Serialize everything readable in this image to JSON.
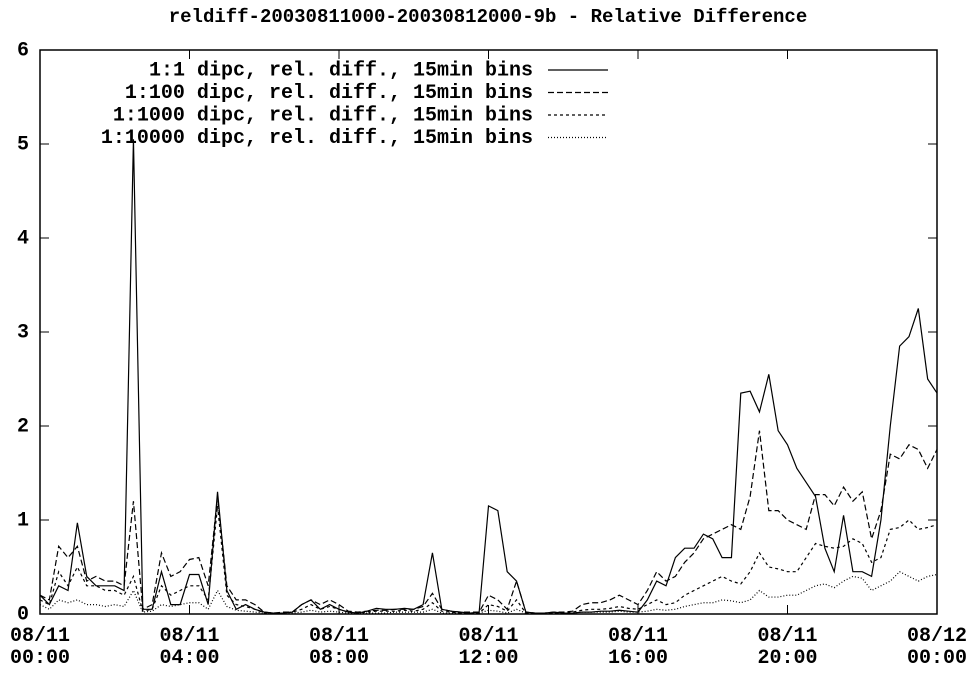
{
  "chart_data": {
    "type": "line",
    "title": "reldiff-20030811000-20030812000-9b - Relative Difference",
    "x": [
      "08/11 00:00",
      "08/11 00:15",
      "08/11 00:30",
      "08/11 00:45",
      "08/11 01:00",
      "08/11 01:15",
      "08/11 01:30",
      "08/11 01:45",
      "08/11 02:00",
      "08/11 02:15",
      "08/11 02:30",
      "08/11 02:45",
      "08/11 03:00",
      "08/11 03:15",
      "08/11 03:30",
      "08/11 03:45",
      "08/11 04:00",
      "08/11 04:15",
      "08/11 04:30",
      "08/11 04:45",
      "08/11 05:00",
      "08/11 05:15",
      "08/11 05:30",
      "08/11 05:45",
      "08/11 06:00",
      "08/11 06:15",
      "08/11 06:30",
      "08/11 06:45",
      "08/11 07:00",
      "08/11 07:15",
      "08/11 07:30",
      "08/11 07:45",
      "08/11 08:00",
      "08/11 08:15",
      "08/11 08:30",
      "08/11 08:45",
      "08/11 09:00",
      "08/11 09:15",
      "08/11 09:30",
      "08/11 09:45",
      "08/11 10:00",
      "08/11 10:15",
      "08/11 10:30",
      "08/11 10:45",
      "08/11 11:00",
      "08/11 11:15",
      "08/11 11:30",
      "08/11 11:45",
      "08/11 12:00",
      "08/11 12:15",
      "08/11 12:30",
      "08/11 12:45",
      "08/11 13:00",
      "08/11 13:15",
      "08/11 13:30",
      "08/11 13:45",
      "08/11 14:00",
      "08/11 14:15",
      "08/11 14:30",
      "08/11 14:45",
      "08/11 15:00",
      "08/11 15:15",
      "08/11 15:30",
      "08/11 15:45",
      "08/11 16:00",
      "08/11 16:15",
      "08/11 16:30",
      "08/11 16:45",
      "08/11 17:00",
      "08/11 17:15",
      "08/11 17:30",
      "08/11 17:45",
      "08/11 18:00",
      "08/11 18:15",
      "08/11 18:30",
      "08/11 18:45",
      "08/11 19:00",
      "08/11 19:15",
      "08/11 19:30",
      "08/11 19:45",
      "08/11 20:00",
      "08/11 20:15",
      "08/11 20:30",
      "08/11 20:45",
      "08/11 21:00",
      "08/11 21:15",
      "08/11 21:30",
      "08/11 21:45",
      "08/11 22:00",
      "08/11 22:15",
      "08/11 22:30",
      "08/11 22:45",
      "08/11 23:00",
      "08/11 23:15",
      "08/11 23:30",
      "08/11 23:45",
      "08/12 00:00"
    ],
    "series": [
      {
        "name": "1:1 dipc, rel. diff., 15min bins",
        "color": "#000000",
        "dash": "none",
        "values": [
          0.2,
          0.1,
          0.3,
          0.25,
          0.97,
          0.4,
          0.3,
          0.3,
          0.3,
          0.25,
          5.05,
          0.05,
          0.05,
          0.45,
          0.1,
          0.1,
          0.42,
          0.42,
          0.1,
          1.3,
          0.25,
          0.05,
          0.1,
          0.05,
          0.02,
          0.01,
          0.01,
          0.02,
          0.1,
          0.15,
          0.05,
          0.1,
          0.05,
          0.02,
          0.01,
          0.03,
          0.06,
          0.05,
          0.05,
          0.06,
          0.05,
          0.1,
          0.65,
          0.05,
          0.03,
          0.02,
          0.01,
          0.02,
          1.15,
          1.1,
          0.45,
          0.35,
          0.02,
          0.01,
          0.01,
          0.02,
          0.01,
          0.01,
          0.02,
          0.02,
          0.03,
          0.03,
          0.04,
          0.03,
          0.02,
          0.15,
          0.35,
          0.3,
          0.6,
          0.7,
          0.7,
          0.85,
          0.8,
          0.6,
          0.6,
          2.35,
          2.37,
          2.15,
          2.55,
          1.95,
          1.8,
          1.55,
          1.4,
          1.25,
          0.7,
          0.45,
          1.05,
          0.45,
          0.45,
          0.4,
          1.0,
          2.0,
          2.85,
          2.95,
          3.25,
          2.5,
          2.35
        ]
      },
      {
        "name": "1:100 dipc, rel. diff., 15min bins",
        "color": "#000000",
        "dash": "6,3",
        "values": [
          0.2,
          0.15,
          0.72,
          0.6,
          0.72,
          0.35,
          0.4,
          0.35,
          0.35,
          0.3,
          1.2,
          0.05,
          0.1,
          0.65,
          0.4,
          0.45,
          0.58,
          0.6,
          0.3,
          1.25,
          0.3,
          0.15,
          0.15,
          0.1,
          0.02,
          0.01,
          0.02,
          0.02,
          0.1,
          0.15,
          0.1,
          0.15,
          0.1,
          0.03,
          0.02,
          0.03,
          0.04,
          0.04,
          0.05,
          0.05,
          0.05,
          0.08,
          0.22,
          0.05,
          0.03,
          0.02,
          0.02,
          0.02,
          0.2,
          0.15,
          0.05,
          0.35,
          0.02,
          0.01,
          0.01,
          0.02,
          0.02,
          0.03,
          0.1,
          0.12,
          0.12,
          0.15,
          0.2,
          0.15,
          0.1,
          0.25,
          0.45,
          0.35,
          0.4,
          0.55,
          0.65,
          0.8,
          0.85,
          0.9,
          0.95,
          0.9,
          1.25,
          1.95,
          1.1,
          1.1,
          1.0,
          0.95,
          0.9,
          1.27,
          1.27,
          1.15,
          1.35,
          1.2,
          1.3,
          0.8,
          1.1,
          1.7,
          1.65,
          1.8,
          1.75,
          1.55,
          1.75
        ]
      },
      {
        "name": "1:1000 dipc, rel. diff., 15min bins",
        "color": "#000000",
        "dash": "3,3",
        "values": [
          0.15,
          0.1,
          0.45,
          0.3,
          0.5,
          0.3,
          0.3,
          0.25,
          0.25,
          0.2,
          0.4,
          0.03,
          0.05,
          0.3,
          0.2,
          0.25,
          0.3,
          0.3,
          0.15,
          1.15,
          0.2,
          0.1,
          0.08,
          0.05,
          0.01,
          0.01,
          0.01,
          0.02,
          0.05,
          0.1,
          0.05,
          0.08,
          0.05,
          0.02,
          0.01,
          0.02,
          0.03,
          0.03,
          0.03,
          0.04,
          0.03,
          0.05,
          0.12,
          0.03,
          0.02,
          0.01,
          0.01,
          0.01,
          0.1,
          0.08,
          0.03,
          0.15,
          0.01,
          0.01,
          0.01,
          0.01,
          0.01,
          0.02,
          0.04,
          0.05,
          0.05,
          0.06,
          0.08,
          0.06,
          0.05,
          0.1,
          0.15,
          0.1,
          0.12,
          0.2,
          0.25,
          0.3,
          0.35,
          0.4,
          0.35,
          0.32,
          0.45,
          0.65,
          0.5,
          0.48,
          0.45,
          0.45,
          0.6,
          0.75,
          0.72,
          0.7,
          0.72,
          0.8,
          0.75,
          0.55,
          0.6,
          0.9,
          0.92,
          1.0,
          0.9,
          0.92,
          0.95
        ]
      },
      {
        "name": "1:10000 dipc, rel. diff., 15min bins",
        "color": "#000000",
        "dash": "1,2",
        "values": [
          0.1,
          0.05,
          0.15,
          0.12,
          0.15,
          0.1,
          0.1,
          0.08,
          0.1,
          0.08,
          0.25,
          0.02,
          0.03,
          0.1,
          0.08,
          0.1,
          0.12,
          0.12,
          0.05,
          0.25,
          0.08,
          0.04,
          0.03,
          0.02,
          0.01,
          0.01,
          0.01,
          0.01,
          0.02,
          0.04,
          0.02,
          0.03,
          0.02,
          0.01,
          0.01,
          0.01,
          0.01,
          0.01,
          0.02,
          0.02,
          0.02,
          0.02,
          0.05,
          0.01,
          0.01,
          0.01,
          0.01,
          0.01,
          0.04,
          0.03,
          0.01,
          0.05,
          0.01,
          0.01,
          0.01,
          0.01,
          0.01,
          0.01,
          0.02,
          0.02,
          0.02,
          0.02,
          0.03,
          0.02,
          0.02,
          0.03,
          0.05,
          0.04,
          0.05,
          0.08,
          0.1,
          0.12,
          0.12,
          0.15,
          0.14,
          0.12,
          0.15,
          0.25,
          0.18,
          0.18,
          0.2,
          0.2,
          0.25,
          0.3,
          0.32,
          0.28,
          0.35,
          0.4,
          0.38,
          0.25,
          0.3,
          0.35,
          0.45,
          0.4,
          0.35,
          0.4,
          0.42
        ]
      }
    ],
    "xlim": [
      "08/11 00:00",
      "08/12 00:00"
    ],
    "xticks": [
      "08/11 00:00",
      "08/11 04:00",
      "08/11 08:00",
      "08/11 12:00",
      "08/11 16:00",
      "08/11 20:00",
      "08/12 00:00"
    ],
    "ylim": [
      0,
      6
    ],
    "yticks": [
      0,
      1,
      2,
      3,
      4,
      5,
      6
    ],
    "grid": false,
    "legend": "upper-left"
  }
}
